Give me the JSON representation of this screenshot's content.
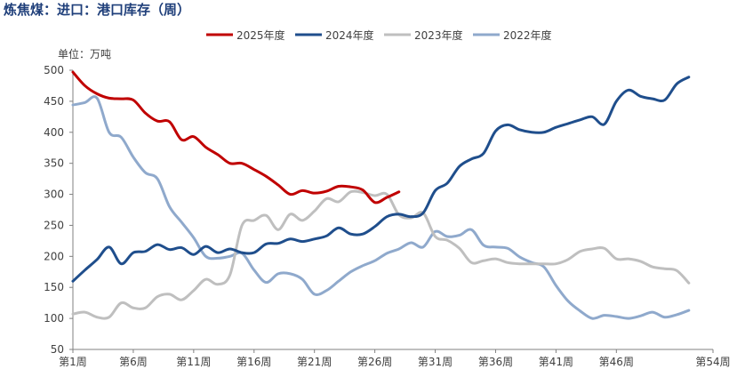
{
  "title": "炼焦煤：进口：港口库存（周）",
  "unit_label": "单位：万吨",
  "chart_data": {
    "type": "line",
    "title": "炼焦煤：进口：港口库存（周）",
    "ylabel": "单位：万吨",
    "xlabel": "",
    "ylim": [
      50,
      500
    ],
    "yticks": [
      50,
      100,
      150,
      200,
      250,
      300,
      350,
      400,
      450,
      500
    ],
    "xlim": [
      1,
      54
    ],
    "xtick_positions": [
      1,
      6,
      11,
      16,
      21,
      26,
      31,
      36,
      41,
      46,
      54
    ],
    "xtick_labels": [
      "第1周",
      "第6周",
      "第11周",
      "第16周",
      "第21周",
      "第26周",
      "第31周",
      "第36周",
      "第41周",
      "第46周",
      "第54周"
    ],
    "grid": false,
    "legend_position": "top",
    "series": [
      {
        "name": "2025年度",
        "color": "#c00000",
        "x": [
          1,
          2,
          3,
          4,
          5,
          6,
          7,
          8,
          9,
          10,
          11,
          12,
          13,
          14,
          15,
          16,
          17,
          18,
          19,
          20,
          21,
          22,
          23,
          24,
          25,
          26,
          27,
          28
        ],
        "values": [
          497,
          475,
          462,
          455,
          454,
          452,
          431,
          418,
          417,
          388,
          393,
          376,
          364,
          350,
          350,
          340,
          329,
          315,
          300,
          306,
          302,
          305,
          313,
          312,
          307,
          287,
          295,
          304
        ]
      },
      {
        "name": "2024年度",
        "color": "#1f4e8c",
        "x": [
          1,
          2,
          3,
          4,
          5,
          6,
          7,
          8,
          9,
          10,
          11,
          12,
          13,
          14,
          15,
          16,
          17,
          18,
          19,
          20,
          21,
          22,
          23,
          24,
          25,
          26,
          27,
          28,
          29,
          30,
          31,
          32,
          33,
          34,
          35,
          36,
          37,
          38,
          39,
          40,
          41,
          42,
          43,
          44,
          45,
          46,
          47,
          48,
          49,
          50,
          51,
          52
        ],
        "values": [
          160,
          178,
          195,
          215,
          188,
          206,
          208,
          219,
          211,
          214,
          203,
          216,
          206,
          212,
          206,
          206,
          220,
          221,
          228,
          224,
          228,
          233,
          246,
          236,
          236,
          248,
          264,
          268,
          264,
          270,
          306,
          318,
          345,
          357,
          366,
          402,
          412,
          404,
          400,
          400,
          408,
          414,
          420,
          425,
          413,
          450,
          468,
          458,
          454,
          452,
          478,
          489
        ]
      },
      {
        "name": "2023年度",
        "color": "#bfbfbf",
        "x": [
          1,
          2,
          3,
          4,
          5,
          6,
          7,
          8,
          9,
          10,
          11,
          12,
          13,
          14,
          15,
          16,
          17,
          18,
          19,
          20,
          21,
          22,
          23,
          24,
          25,
          26,
          27,
          28,
          29,
          30,
          31,
          32,
          33,
          34,
          35,
          36,
          37,
          38,
          39,
          40,
          41,
          42,
          43,
          44,
          45,
          46,
          47,
          48,
          49,
          50,
          51,
          52
        ],
        "values": [
          107,
          110,
          102,
          102,
          125,
          117,
          117,
          135,
          139,
          130,
          145,
          163,
          155,
          170,
          250,
          258,
          266,
          243,
          268,
          258,
          273,
          293,
          288,
          304,
          303,
          298,
          300,
          267,
          262,
          270,
          232,
          226,
          213,
          190,
          193,
          196,
          190,
          188,
          188,
          188,
          188,
          195,
          208,
          212,
          213,
          196,
          196,
          192,
          183,
          180,
          177,
          157
        ]
      },
      {
        "name": "2022年度",
        "color": "#8fa9cc",
        "x": [
          1,
          2,
          3,
          4,
          5,
          6,
          7,
          8,
          9,
          10,
          11,
          12,
          13,
          14,
          15,
          16,
          17,
          18,
          19,
          20,
          21,
          22,
          23,
          24,
          25,
          26,
          27,
          28,
          29,
          30,
          31,
          32,
          33,
          34,
          35,
          36,
          37,
          38,
          39,
          40,
          41,
          42,
          43,
          44,
          45,
          46,
          47,
          48,
          49,
          50,
          51,
          52
        ],
        "values": [
          444,
          448,
          455,
          400,
          392,
          360,
          335,
          325,
          280,
          255,
          230,
          200,
          197,
          200,
          205,
          178,
          158,
          172,
          172,
          163,
          139,
          145,
          160,
          175,
          185,
          193,
          205,
          212,
          222,
          215,
          240,
          232,
          234,
          243,
          218,
          215,
          213,
          199,
          190,
          183,
          153,
          128,
          112,
          100,
          105,
          103,
          100,
          104,
          110,
          102,
          106,
          113
        ]
      }
    ]
  }
}
